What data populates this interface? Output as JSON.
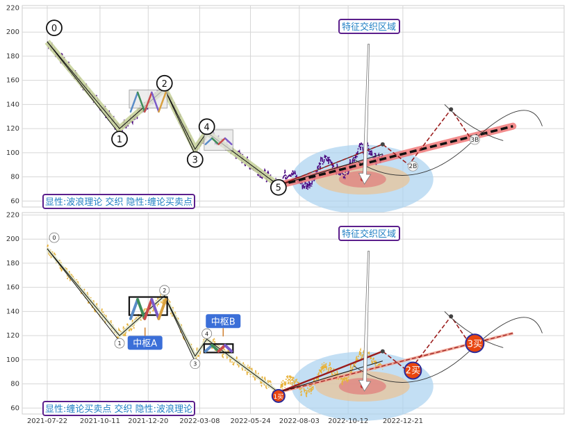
{
  "colors": {
    "purple": "#4b0a82",
    "gold": "#e8b23a",
    "olive": "#c8d39c",
    "red": "#f07878",
    "darkred": "#9b1c1c",
    "frame": "#5b1f8c",
    "label": "#1f7fc4",
    "blue": "#3b6fd8",
    "orange": "#e8450f"
  },
  "chart_data": [
    {
      "type": "line",
      "ylim": [
        55,
        222
      ],
      "yticks": [
        60,
        80,
        100,
        120,
        140,
        160,
        180,
        200,
        220
      ],
      "xticks": [
        "2021-07-22",
        "2021-10-11",
        "2021-12-20",
        "2022-03-08",
        "2022-05-24",
        "2022-08-03",
        "2022-10-12",
        "2022-12-21"
      ],
      "title_box": "特征交织区域",
      "legend_box": "显性:波浪理论 交织 隐性:缠论买卖点",
      "wave_labels": [
        "0",
        "1",
        "2",
        "3",
        "4",
        "5"
      ],
      "projection_labels": [
        "2B",
        "3B"
      ],
      "pivots": [
        [
          0,
          192
        ],
        [
          111,
          120
        ],
        [
          180,
          153
        ],
        [
          227,
          103
        ],
        [
          245,
          117
        ],
        [
          355,
          73
        ]
      ],
      "projection": [
        [
          355,
          73
        ],
        [
          515,
          107
        ],
        [
          555,
          90
        ],
        [
          620,
          136
        ],
        [
          650,
          112
        ]
      ],
      "trend": [
        [
          355,
          73
        ],
        [
          715,
          122
        ]
      ]
    },
    {
      "type": "line",
      "ylim": [
        55,
        222
      ],
      "yticks": [
        60,
        80,
        100,
        120,
        140,
        160,
        180,
        200,
        220
      ],
      "xticks": [
        "2021-07-22",
        "2021-10-11",
        "2021-12-20",
        "2022-03-08",
        "2022-05-24",
        "2022-08-03",
        "2022-10-12",
        "2022-12-21"
      ],
      "title_box": "特征交织区域",
      "legend_box": "显性:缠论买卖点 交织 隐性:波浪理论",
      "wave_labels": [
        "0",
        "1",
        "2",
        "3",
        "4"
      ],
      "zone_labels": [
        "中枢A",
        "中枢B"
      ],
      "buy_labels": [
        "1买",
        "2买",
        "3买"
      ],
      "pivots": [
        [
          0,
          192
        ],
        [
          111,
          120
        ],
        [
          180,
          153
        ],
        [
          227,
          103
        ],
        [
          245,
          117
        ],
        [
          355,
          73
        ]
      ],
      "projection": [
        [
          355,
          73
        ],
        [
          515,
          107
        ],
        [
          555,
          90
        ],
        [
          620,
          136
        ],
        [
          650,
          112
        ]
      ],
      "trend": [
        [
          355,
          73
        ],
        [
          715,
          122
        ]
      ]
    }
  ]
}
